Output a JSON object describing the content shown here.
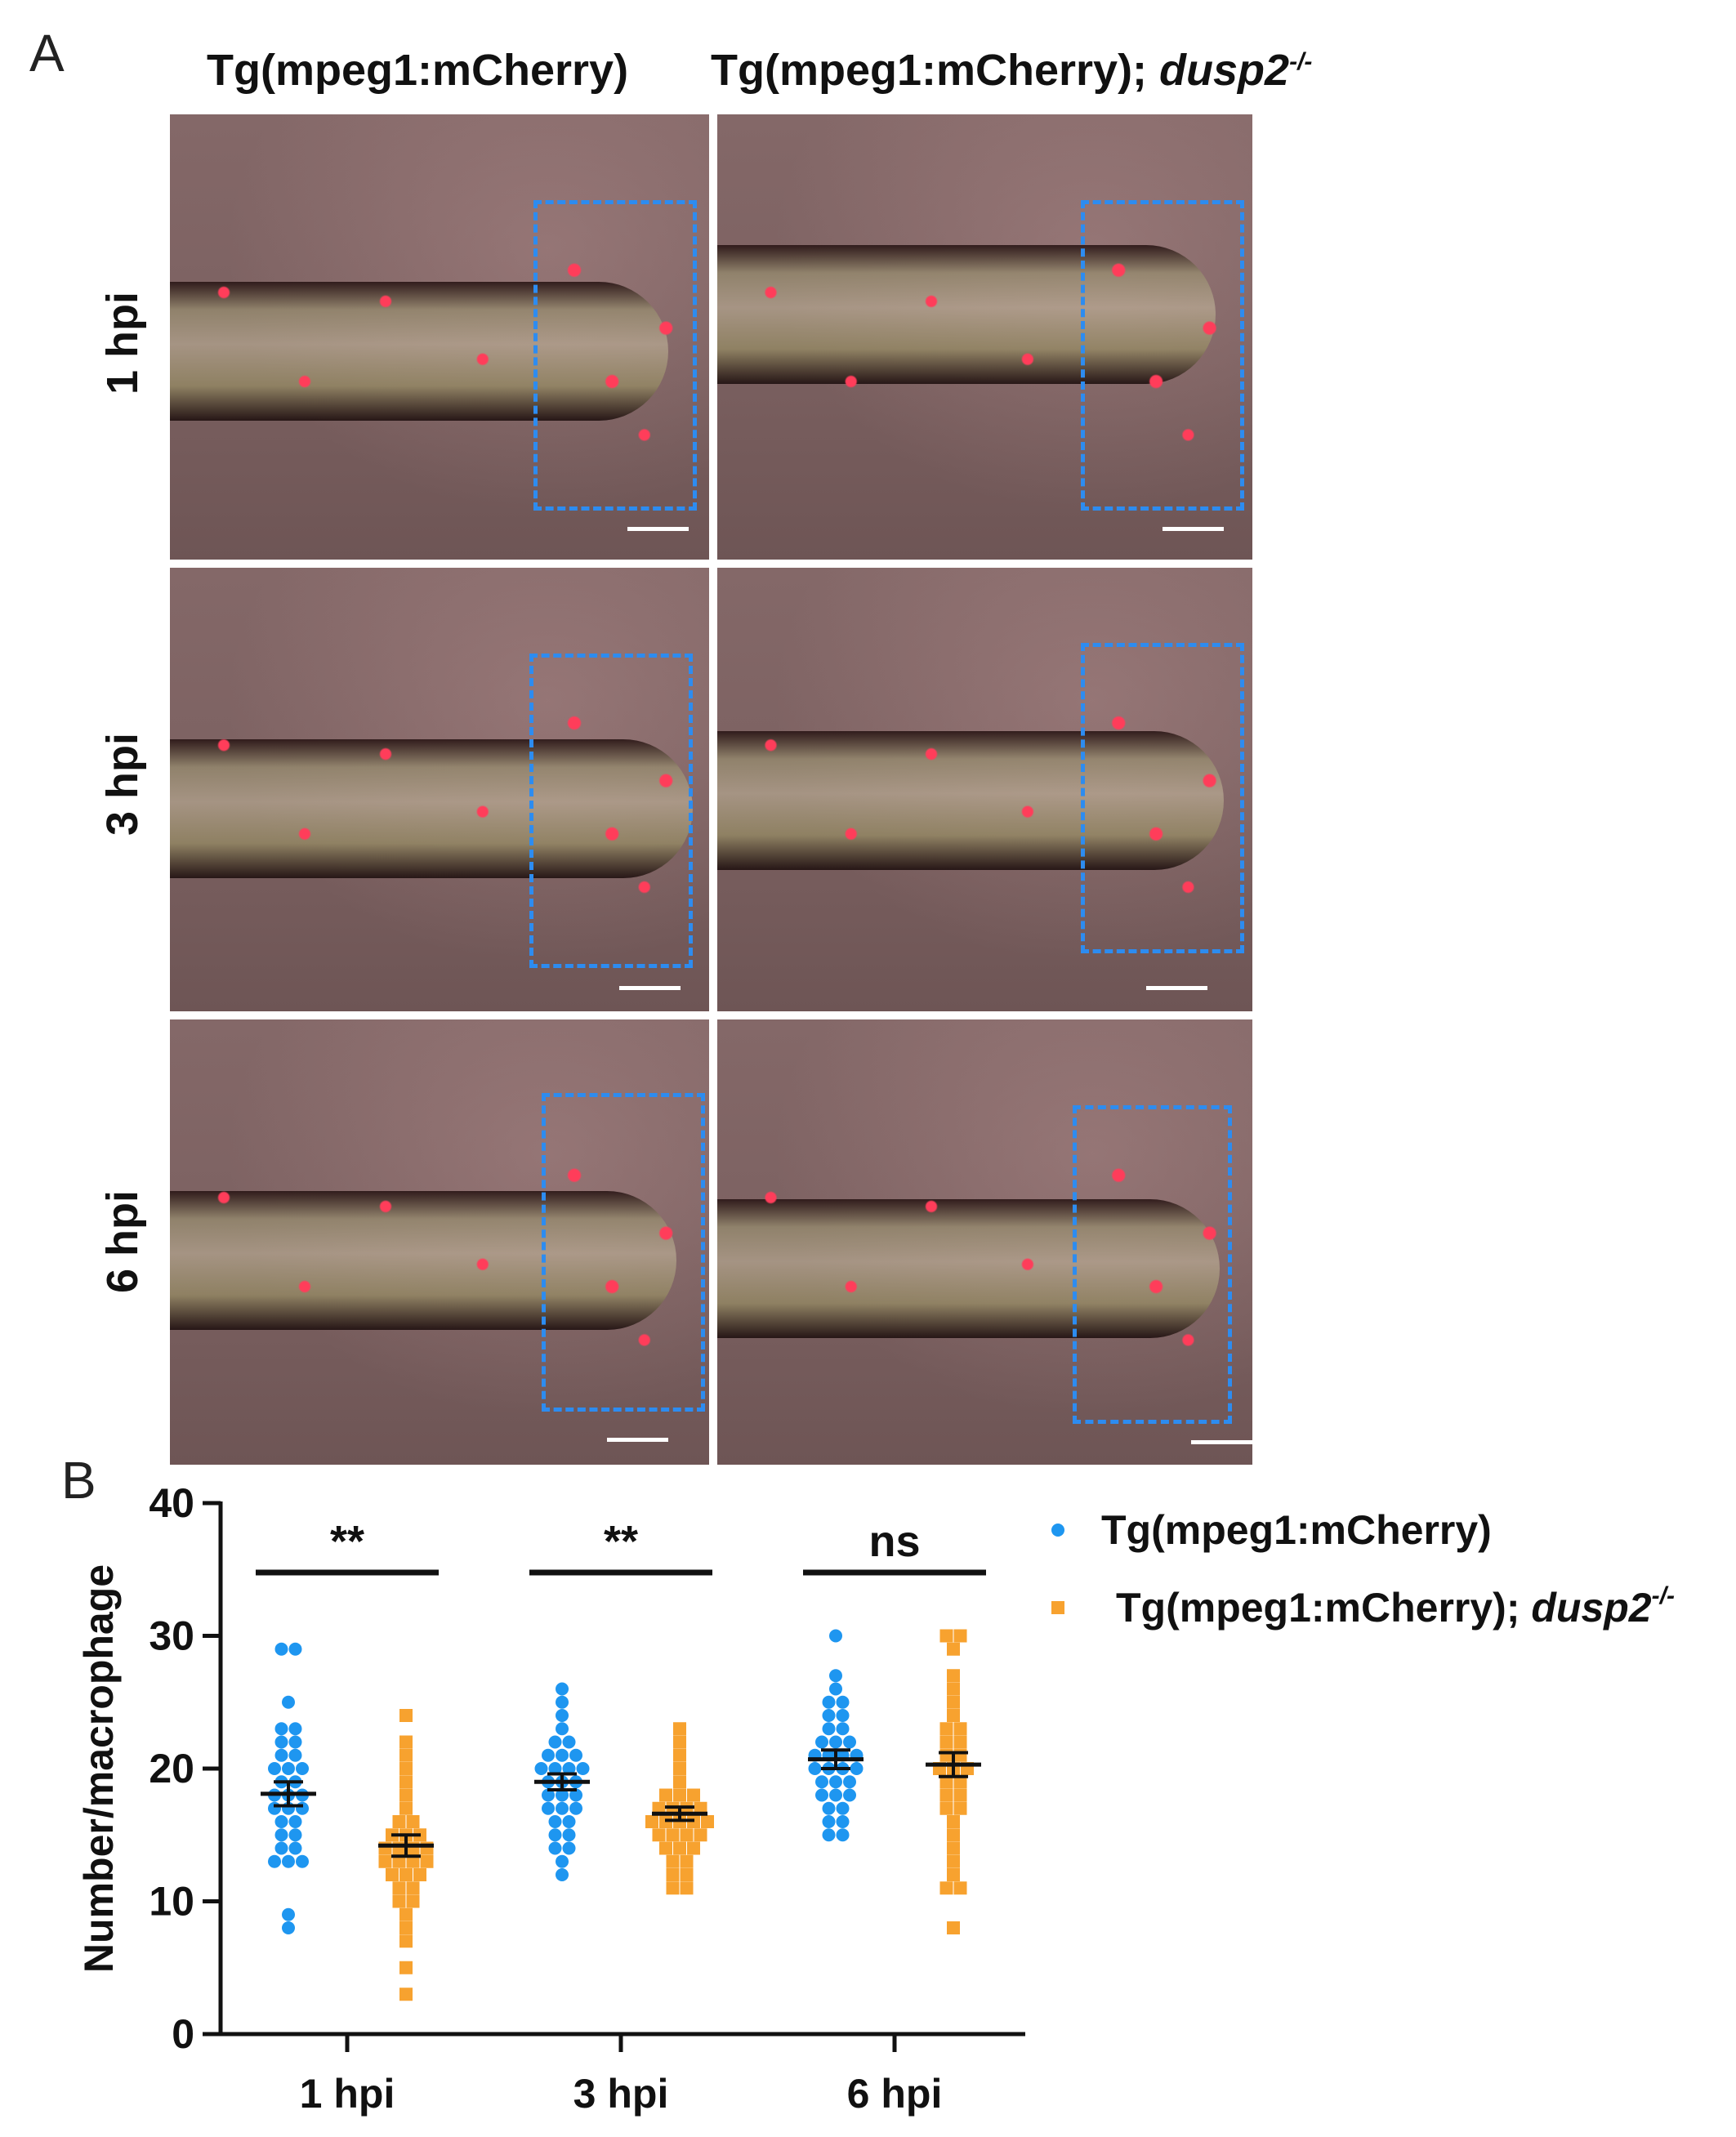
{
  "panel_a": {
    "letter": "A",
    "column_headers": [
      {
        "text": "Tg(mpeg1:mCherry)",
        "italic": ""
      },
      {
        "text": "Tg(mpeg1:mCherry); ",
        "italic": "dusp2",
        "sup": "-/-"
      }
    ],
    "row_labels": [
      "1 hpi",
      "3 hpi",
      "6 hpi"
    ]
  },
  "panel_b": {
    "letter": "B"
  },
  "chart_data": {
    "type": "scatter",
    "ylabel": "Number/macrophage",
    "ylim": [
      0,
      40
    ],
    "yticks": [
      0,
      10,
      20,
      30,
      40
    ],
    "categories": [
      "1 hpi",
      "3 hpi",
      "6 hpi"
    ],
    "legend_position": "top-right",
    "significance": [
      "**",
      "**",
      "ns"
    ],
    "series": [
      {
        "name": "Tg(mpeg1:mCherry)",
        "marker": "circle",
        "color": "#1e96f0",
        "means": [
          18.1,
          19.0,
          20.7
        ],
        "sem": [
          0.9,
          0.6,
          0.7
        ],
        "values": [
          [
            29,
            29,
            25,
            23,
            23,
            22,
            22,
            21,
            21,
            20,
            20,
            20,
            19,
            19,
            18,
            18,
            18,
            17,
            17,
            17,
            16,
            16,
            15,
            15,
            14,
            14,
            13,
            13,
            13,
            9,
            8
          ],
          [
            26,
            25,
            24,
            23,
            22,
            22,
            21,
            21,
            21,
            20,
            20,
            20,
            20,
            19,
            19,
            19,
            18,
            18,
            18,
            17,
            17,
            17,
            16,
            16,
            15,
            15,
            14,
            14,
            13,
            12
          ],
          [
            30,
            27,
            26,
            25,
            25,
            24,
            24,
            23,
            23,
            22,
            22,
            22,
            21,
            21,
            21,
            21,
            20,
            20,
            20,
            20,
            19,
            19,
            19,
            18,
            18,
            18,
            17,
            17,
            16,
            16,
            15,
            15
          ]
        ]
      },
      {
        "name": "Tg(mpeg1:mCherry); dusp2-/-",
        "name_plain": "Tg(mpeg1:mCherry); ",
        "name_italic": "dusp2",
        "name_sup": "-/-",
        "marker": "square",
        "color": "#f7a22f",
        "means": [
          14.2,
          16.6,
          20.3
        ],
        "sem": [
          0.8,
          0.5,
          0.9
        ],
        "values": [
          [
            24,
            22,
            21,
            20,
            19,
            18,
            17,
            16,
            16,
            15,
            15,
            15,
            14,
            14,
            14,
            14,
            13,
            13,
            13,
            13,
            12,
            12,
            12,
            11,
            11,
            10,
            10,
            9,
            8,
            7,
            5,
            3
          ],
          [
            23,
            22,
            21,
            20,
            19,
            18,
            18,
            18,
            17,
            17,
            17,
            17,
            16,
            16,
            16,
            16,
            16,
            15,
            15,
            15,
            15,
            14,
            14,
            14,
            13,
            13,
            12,
            12,
            11,
            11
          ],
          [
            30,
            30,
            29,
            27,
            26,
            25,
            24,
            23,
            23,
            22,
            22,
            21,
            21,
            20,
            20,
            20,
            19,
            19,
            18,
            18,
            17,
            17,
            16,
            15,
            14,
            13,
            12,
            11,
            11,
            8
          ]
        ]
      }
    ]
  }
}
